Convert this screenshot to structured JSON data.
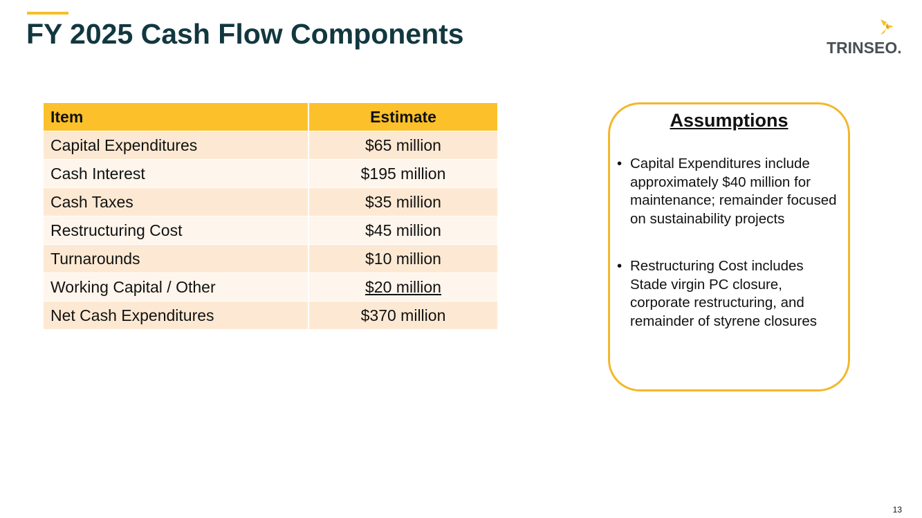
{
  "header": {
    "title": "FY 2025 Cash Flow Components",
    "logo_text": "TRINSEO."
  },
  "table": {
    "columns": [
      "Item",
      "Estimate"
    ],
    "rows": [
      {
        "item": "Capital Expenditures",
        "estimate": "$65 million"
      },
      {
        "item": "Cash Interest",
        "estimate": "$195 million"
      },
      {
        "item": "Cash Taxes",
        "estimate": "$35 million"
      },
      {
        "item": "Restructuring Cost",
        "estimate": "$45 million"
      },
      {
        "item": "Turnarounds",
        "estimate": "$10 million"
      },
      {
        "item": "Working Capital / Other",
        "estimate": "$20 million"
      },
      {
        "item": "Net Cash Expenditures",
        "estimate": "$370 million"
      }
    ]
  },
  "assumptions": {
    "title": "Assumptions",
    "bullets": [
      "Capital Expenditures include approximately $40 million for maintenance; remainder focused on sustainability projects",
      "Restructuring Cost includes Stade virgin PC closure, corporate restructuring, and remainder of styrene closures"
    ]
  },
  "footer": {
    "page_number": "13"
  },
  "colors": {
    "accent": "#f5c026",
    "title": "#12373f",
    "header_row": "#fcc12a",
    "row_odd": "#fde9d3",
    "row_even": "#fef5ec",
    "border": "#f3b72a"
  }
}
